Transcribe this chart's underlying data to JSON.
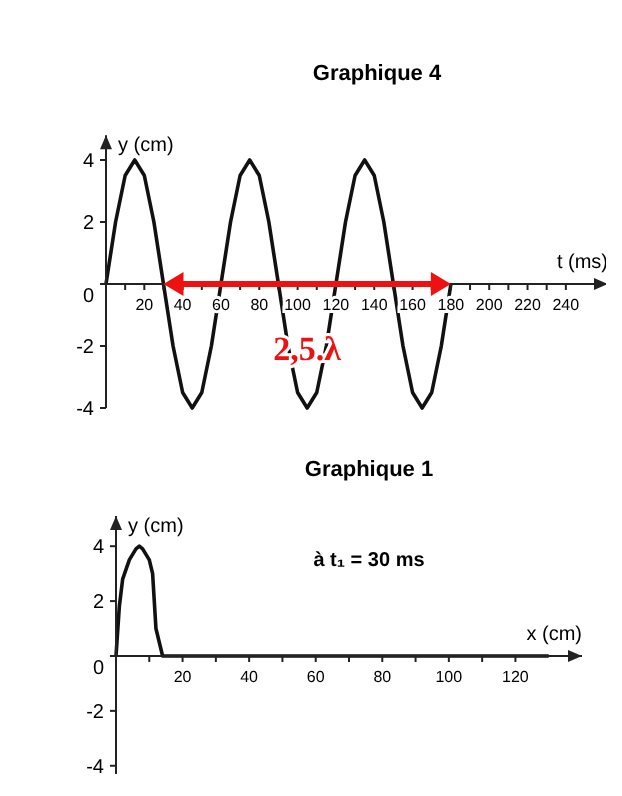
{
  "chart_data": [
    {
      "type": "line",
      "title": "Graphique 4",
      "xlabel": "t (ms)",
      "ylabel": "y (cm)",
      "x": [
        0,
        5,
        10,
        15,
        20,
        25,
        30,
        35,
        40,
        45,
        50,
        55,
        60,
        65,
        70,
        75,
        80,
        85,
        90,
        95,
        100,
        105,
        110,
        115,
        120,
        125,
        130,
        135,
        140,
        145,
        150,
        155,
        160,
        165,
        170,
        175,
        180
      ],
      "series": [
        {
          "color": "#111111",
          "values": [
            0,
            2,
            3.5,
            4,
            3.5,
            2,
            0,
            -2,
            -3.5,
            -4,
            -3.5,
            -2,
            0,
            2,
            3.5,
            4,
            3.5,
            2,
            0,
            -2,
            -3.5,
            -4,
            -3.5,
            -2,
            0,
            2,
            3.5,
            4,
            3.5,
            2,
            0,
            -2,
            -3.5,
            -4,
            -3.5,
            -2,
            0
          ]
        }
      ],
      "xlim": [
        0,
        262
      ],
      "ylim": [
        -4,
        4.8
      ],
      "xticks": [
        {
          "value": 0,
          "label": null
        },
        {
          "value": 10,
          "label": null
        },
        20,
        {
          "value": 30,
          "label": null
        },
        40,
        {
          "value": 50,
          "label": null
        },
        60,
        {
          "value": 70,
          "label": null
        },
        80,
        {
          "value": 90,
          "label": null
        },
        100,
        {
          "value": 110,
          "label": null
        },
        120,
        {
          "value": 130,
          "label": null
        },
        140,
        {
          "value": 150,
          "label": null
        },
        160,
        {
          "value": 170,
          "label": null
        },
        180,
        {
          "value": 190,
          "label": null
        },
        200,
        {
          "value": 210,
          "label": null
        },
        220,
        {
          "value": 230,
          "label": null
        },
        240
      ],
      "yticks": [
        -4,
        -2,
        0,
        2,
        4
      ],
      "annotations": [
        "2,5.λ"
      ],
      "grid": false,
      "marker": "none",
      "line_style": "solid"
    },
    {
      "type": "line",
      "title": "Graphique 1",
      "xlabel": "x (cm)",
      "ylabel": "y (cm)",
      "x": [
        0,
        1,
        2,
        4,
        6,
        7,
        8,
        10,
        11,
        12,
        14,
        130
      ],
      "series": [
        {
          "color": "#111111",
          "values": [
            0,
            1.8,
            2.8,
            3.5,
            3.9,
            4,
            3.9,
            3.5,
            3,
            1,
            0,
            0
          ]
        }
      ],
      "xlim": [
        0,
        140
      ],
      "ylim": [
        -4.3,
        5.1
      ],
      "xticks": [
        {
          "value": 0,
          "label": null
        },
        {
          "value": 10,
          "label": null
        },
        20,
        {
          "value": 30,
          "label": null
        },
        40,
        {
          "value": 50,
          "label": null
        },
        60,
        {
          "value": 70,
          "label": null
        },
        80,
        {
          "value": 90,
          "label": null
        },
        100,
        {
          "value": 110,
          "label": null
        },
        120
      ],
      "yticks": [
        -4,
        -2,
        0,
        2,
        4
      ],
      "annotations": [
        "à t₁ = 30 ms"
      ],
      "grid": false,
      "marker": "none",
      "line_style": "solid"
    }
  ]
}
